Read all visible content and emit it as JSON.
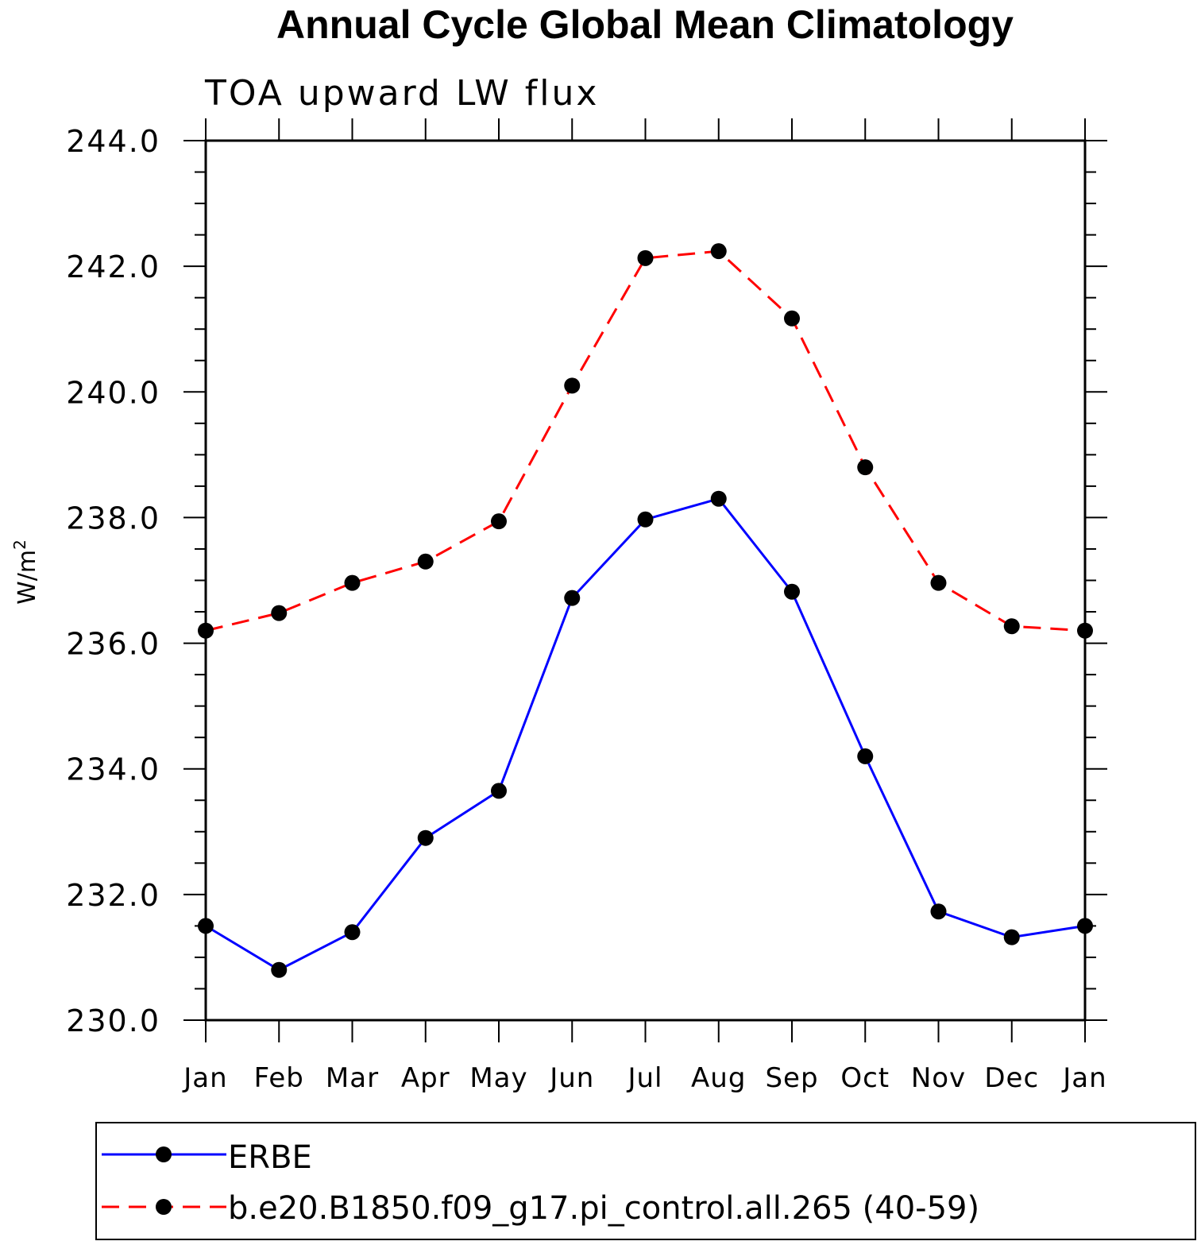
{
  "chart_data": {
    "type": "line",
    "title": "Annual Cycle Global Mean Climatology",
    "subtitle": "TOA upward LW flux",
    "ylabel": "W/m",
    "ylabel_sup": "2",
    "xlabel": "",
    "categories": [
      "Jan",
      "Feb",
      "Mar",
      "Apr",
      "May",
      "Jun",
      "Jul",
      "Aug",
      "Sep",
      "Oct",
      "Nov",
      "Dec",
      "Jan"
    ],
    "ylim": [
      230.0,
      244.0
    ],
    "yticks": [
      230.0,
      232.0,
      234.0,
      236.0,
      238.0,
      240.0,
      242.0,
      244.0
    ],
    "ytick_labels": [
      "230.0",
      "232.0",
      "234.0",
      "236.0",
      "238.0",
      "240.0",
      "242.0",
      "244.0"
    ],
    "grid": false,
    "legend_position": "bottom",
    "series": [
      {
        "name": "ERBE",
        "color": "#0000ff",
        "line_style": "solid",
        "marker": "filled-circle",
        "values": [
          231.5,
          230.8,
          231.4,
          232.9,
          233.65,
          236.72,
          237.97,
          238.3,
          236.82,
          234.2,
          231.73,
          231.32,
          231.5
        ]
      },
      {
        "name": "b.e20.B1850.f09_g17.pi_control.all.265 (40-59)",
        "color": "#ff0000",
        "line_style": "dashed",
        "marker": "filled-circle",
        "values": [
          236.2,
          236.48,
          236.96,
          237.3,
          237.94,
          240.1,
          242.13,
          242.24,
          241.17,
          238.8,
          236.96,
          236.27,
          236.2
        ]
      }
    ]
  }
}
